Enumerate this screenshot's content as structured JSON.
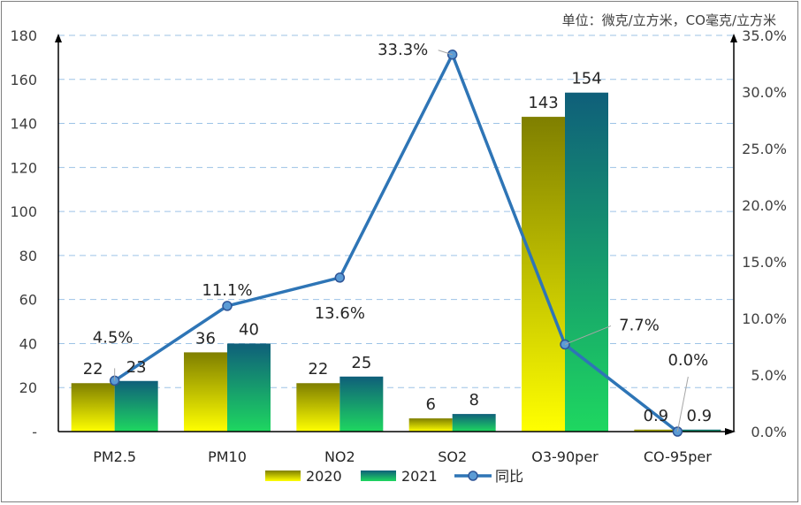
{
  "chart_data": {
    "type": "bar",
    "unit_note": "单位：微克/立方米，CO毫克/立方米",
    "categories": [
      "PM2.5",
      "PM10",
      "NO2",
      "SO2",
      "O3-90per",
      "CO-95per"
    ],
    "series": [
      {
        "name": "2020",
        "type": "bar",
        "axis": "left",
        "values": [
          22,
          36,
          22,
          6,
          143,
          0.9
        ],
        "color_top": "#7f7f00",
        "color_bottom": "#ffff00"
      },
      {
        "name": "2021",
        "type": "bar",
        "axis": "left",
        "values": [
          23,
          40,
          25,
          8,
          154,
          0.9
        ],
        "color_top": "#0f5f7a",
        "color_bottom": "#1ed760"
      },
      {
        "name": "同比",
        "type": "line",
        "axis": "right",
        "values": [
          4.5,
          11.1,
          13.6,
          33.3,
          7.7,
          0.0
        ],
        "labels": [
          "4.5%",
          "11.1%",
          "13.6%",
          "33.3%",
          "7.7%",
          "0.0%"
        ],
        "color": "#2e75b6"
      }
    ],
    "y_left": {
      "min": 0,
      "max": 180,
      "step": 20,
      "tick_labels": [
        "-",
        "20",
        "40",
        "60",
        "80",
        "100",
        "120",
        "140",
        "160",
        "180"
      ]
    },
    "y_right": {
      "min": 0,
      "max": 35,
      "step": 5,
      "tick_labels": [
        "0.0%",
        "5.0%",
        "10.0%",
        "15.0%",
        "20.0%",
        "25.0%",
        "30.0%",
        "35.0%"
      ]
    },
    "bar_labels": [
      [
        "22",
        "36",
        "22",
        "6",
        "143",
        "0.9"
      ],
      [
        "23",
        "40",
        "25",
        "8",
        "154",
        "0.9"
      ]
    ],
    "legend": [
      "2020",
      "2021",
      "同比"
    ],
    "legend_position": "bottom",
    "grid": "horizontal-dashed"
  }
}
